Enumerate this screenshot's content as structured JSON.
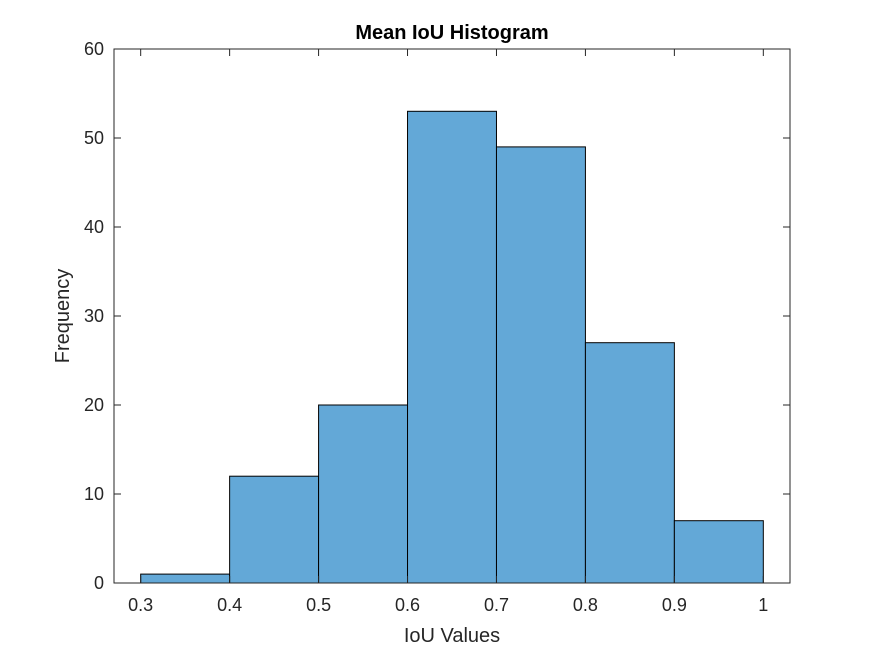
{
  "chart_data": {
    "type": "bar",
    "subtype": "histogram",
    "title": "Mean IoU Histogram",
    "xlabel": "IoU Values",
    "ylabel": "Frequency",
    "bin_edges": [
      0.3,
      0.4,
      0.5,
      0.6,
      0.7,
      0.8,
      0.9,
      1.0
    ],
    "values": [
      1,
      12,
      20,
      53,
      49,
      27,
      7
    ],
    "xlim": [
      0.27,
      1.03
    ],
    "ylim": [
      0,
      60
    ],
    "xticks": [
      0.3,
      0.4,
      0.5,
      0.6,
      0.7,
      0.8,
      0.9,
      1
    ],
    "xtick_labels": [
      "0.3",
      "0.4",
      "0.5",
      "0.6",
      "0.7",
      "0.8",
      "0.9",
      "1"
    ],
    "yticks": [
      0,
      10,
      20,
      30,
      40,
      50,
      60
    ],
    "ytick_labels": [
      "0",
      "10",
      "20",
      "30",
      "40",
      "50",
      "60"
    ],
    "grid": false,
    "legend": null,
    "colors": {
      "bar_fill": "#63a8d7",
      "bar_edge": "#000000",
      "axes": "#262626",
      "background": "#ffffff"
    }
  }
}
